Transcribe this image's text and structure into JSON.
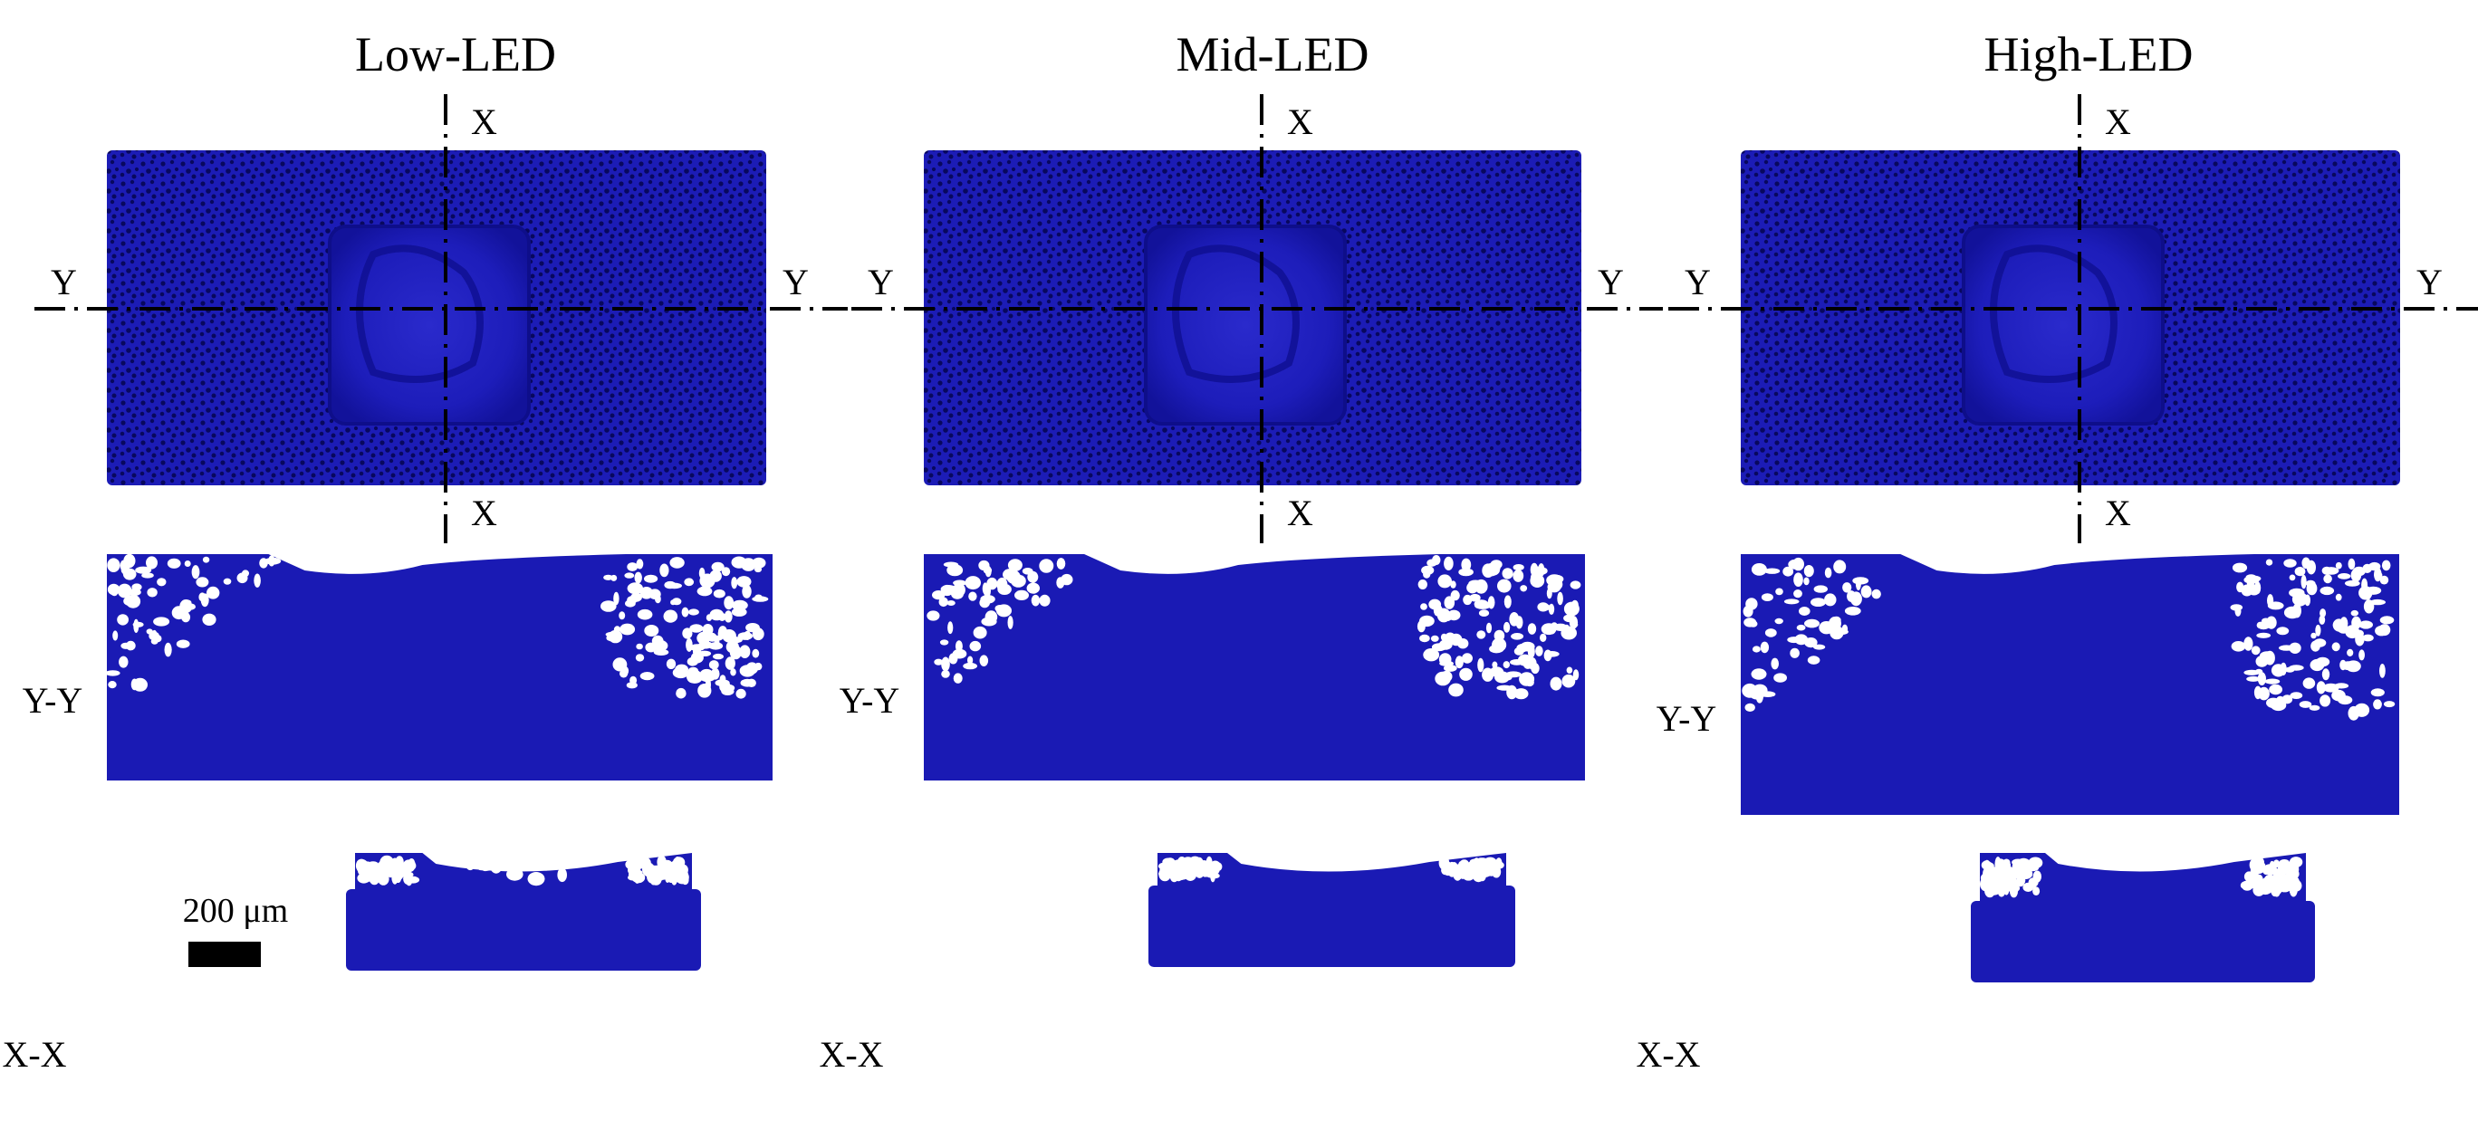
{
  "figure": {
    "columns": [
      {
        "title": "Low-LED"
      },
      {
        "title": "Mid-LED"
      },
      {
        "title": "High-LED"
      }
    ],
    "axis_labels": {
      "x": "X",
      "y": "Y"
    },
    "section_labels": {
      "yy": "Y-Y",
      "xx": "X-X"
    },
    "scale_bar": {
      "label": "200 μm"
    },
    "colors": {
      "powder": "#1a1ab4",
      "dark": "#0b0b70",
      "background": "#ffffff",
      "lines": "#000000"
    }
  }
}
